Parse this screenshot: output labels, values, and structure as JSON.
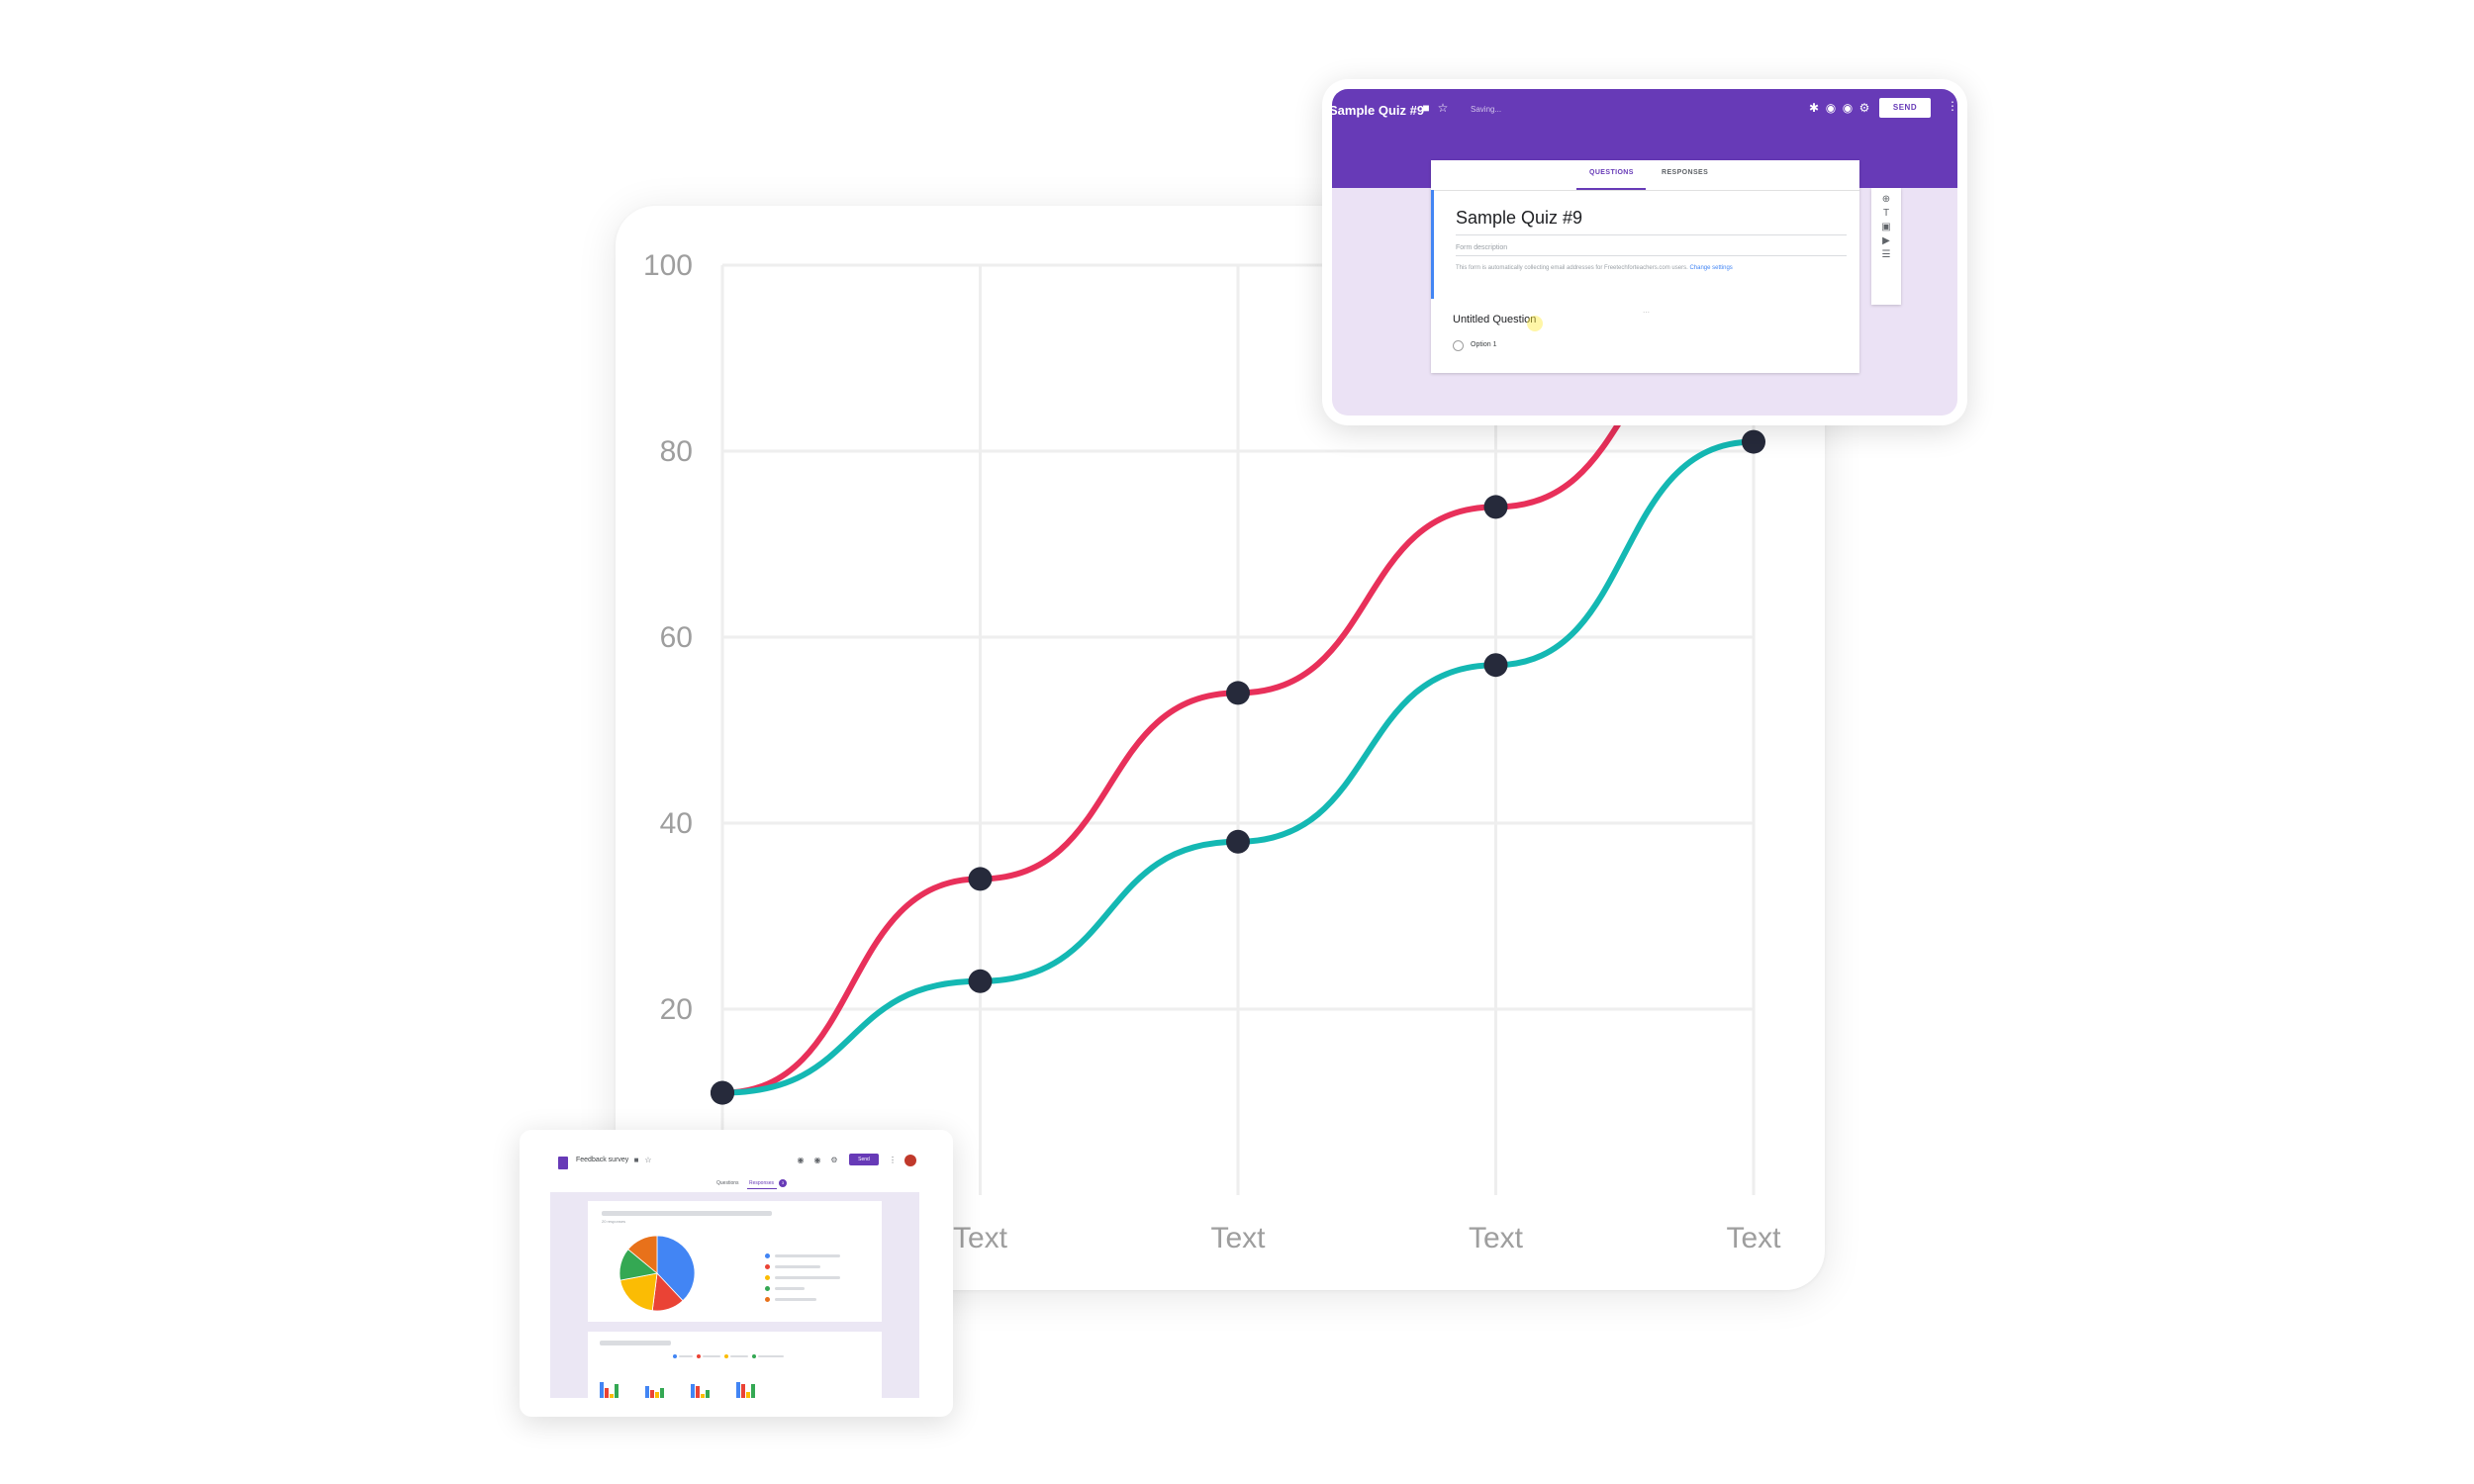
{
  "chart_data": {
    "type": "line",
    "categories": [
      "",
      "Text",
      "Text",
      "Text",
      "Text"
    ],
    "y_ticks": [
      "20",
      "40",
      "60",
      "80",
      "100"
    ],
    "ylim": [
      0,
      100
    ],
    "grid": true,
    "series": [
      {
        "color": "#e8305a",
        "values": [
          11,
          34,
          54,
          74,
          94
        ]
      },
      {
        "color": "#14b8b3",
        "values": [
          11,
          23,
          38,
          57,
          81
        ]
      }
    ],
    "point_color": "#262a3b"
  },
  "quiz": {
    "title": "Sample Quiz #9",
    "saving": "Saving...",
    "send": "SEND",
    "tabs": [
      "QUESTIONS",
      "RESPONSES"
    ],
    "form_title": "Sample Quiz #9",
    "form_description": "Form description",
    "note": "This form is automatically collecting email addresses for Freetechforteachers.com users.",
    "note_link": "Change settings",
    "question": "Untitled Question",
    "option": "Option 1",
    "accent": "#673ab7"
  },
  "feedback": {
    "title": "Feedback survey",
    "send": "Send",
    "tabs": [
      "Questions",
      "Responses"
    ],
    "responses_badge": "3",
    "response_count": "20 responses",
    "pie": [
      {
        "color": "#4285f4",
        "value": 38
      },
      {
        "color": "#ea4335",
        "value": 14
      },
      {
        "color": "#fbbc04",
        "value": 20
      },
      {
        "color": "#34a853",
        "value": 14
      },
      {
        "color": "#e8711a",
        "value": 14
      }
    ]
  }
}
